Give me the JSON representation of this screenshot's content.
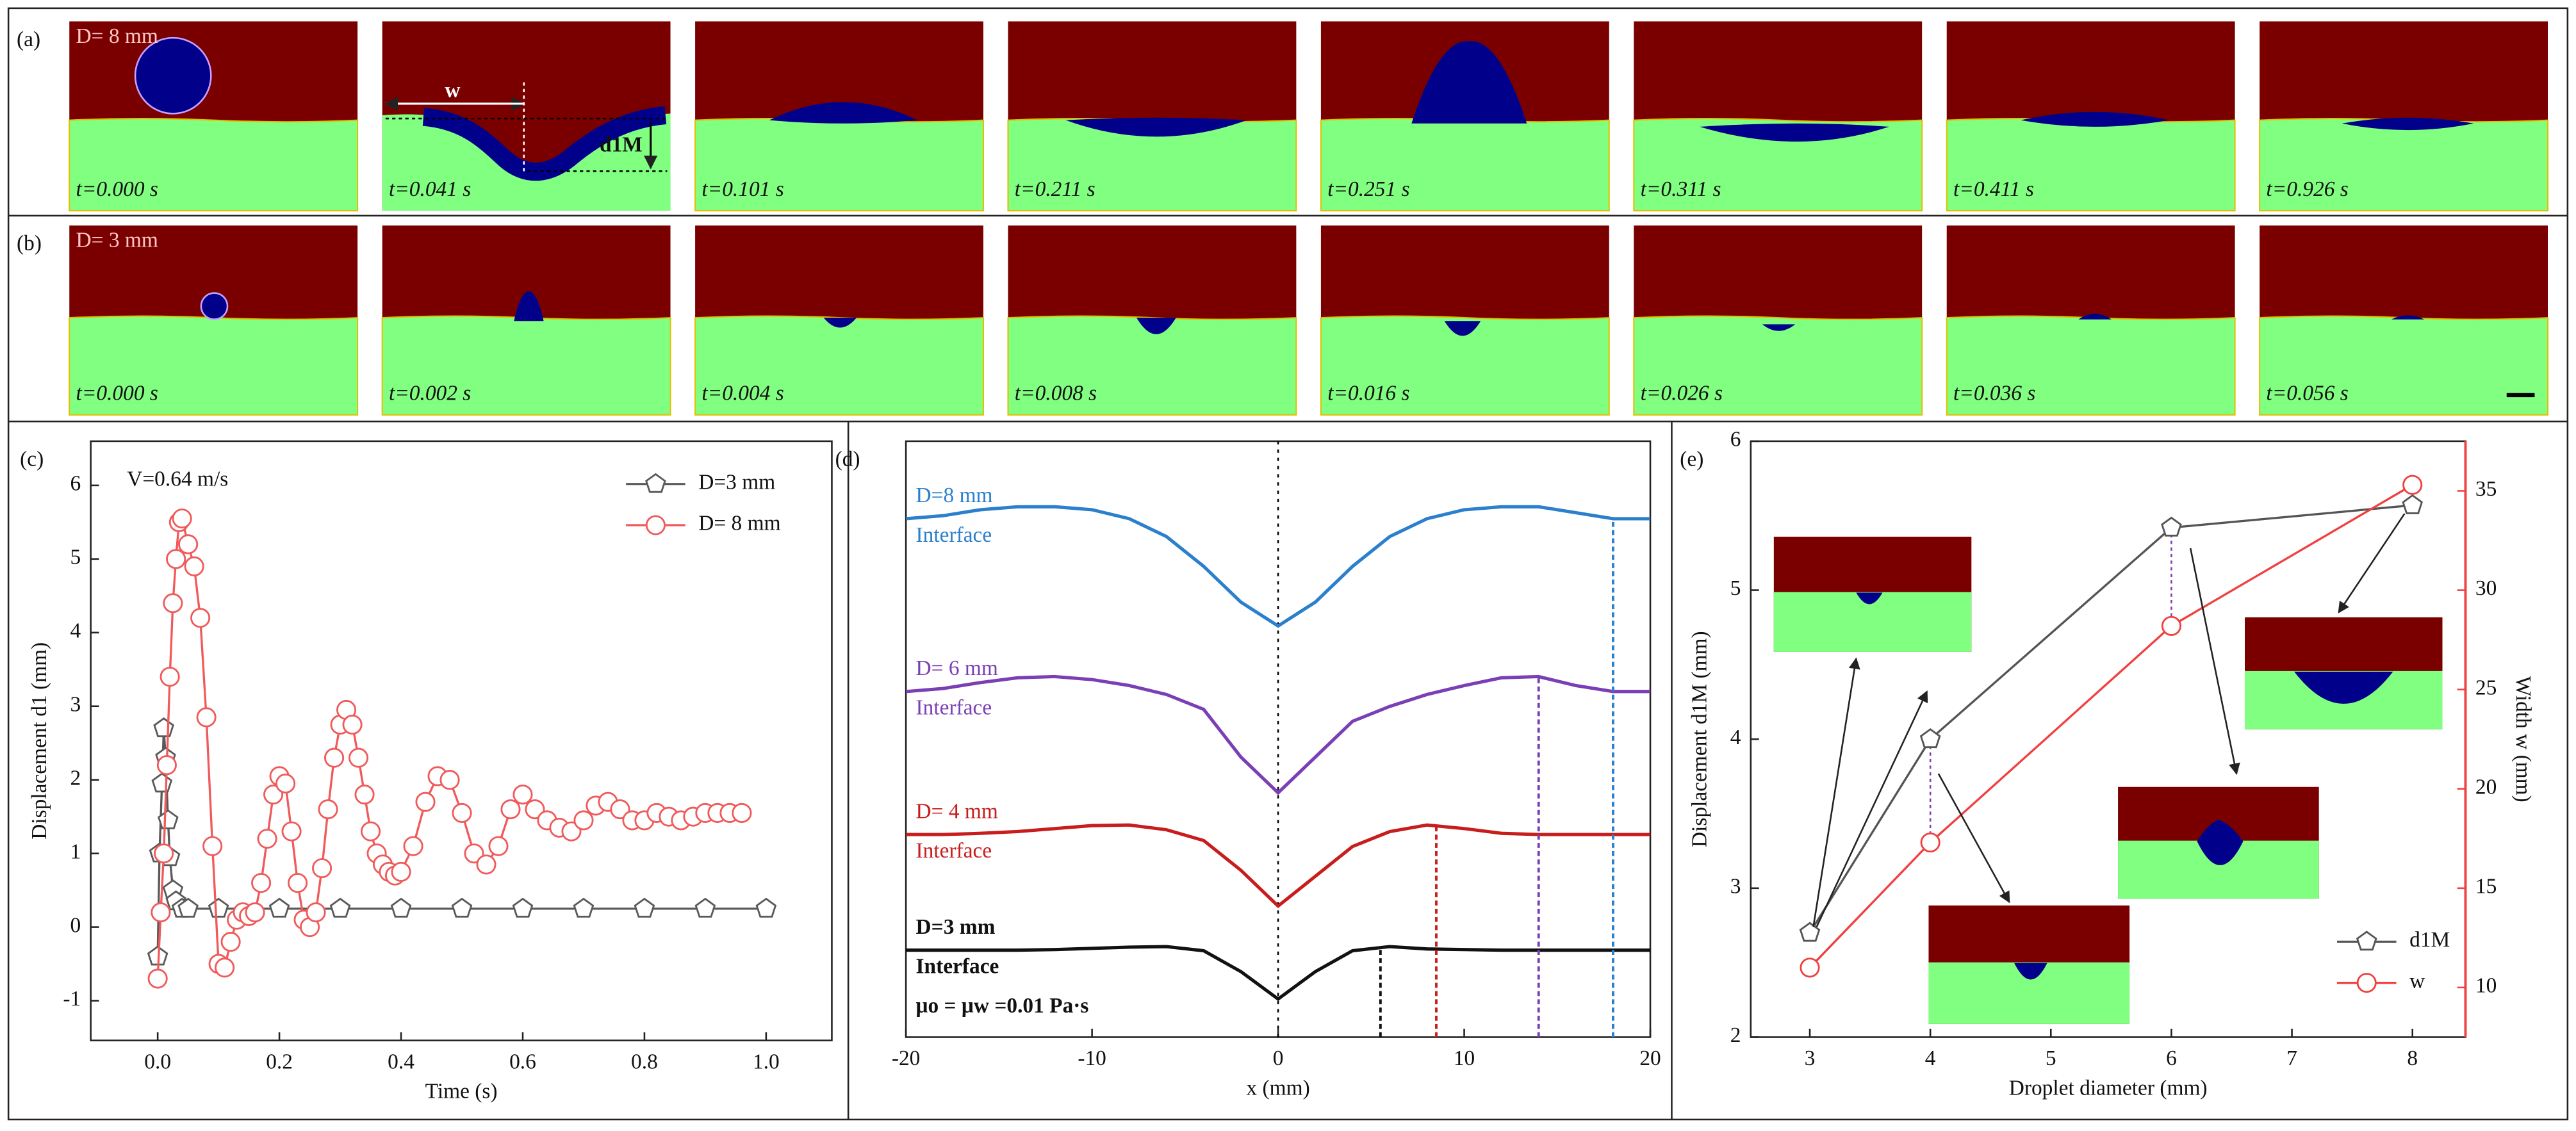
{
  "panels": [
    {
      "label": "(a)",
      "diameter": "D= 8 mm",
      "times": [
        "t=0.000 s",
        "t=0.041 s",
        "t=0.101 s",
        "t=0.211 s",
        "t=0.251 s",
        "t=0.311 s",
        "t=0.411 s",
        "t=0.926 s"
      ],
      "width_label": "w",
      "depth_label": "d1M"
    },
    {
      "label": "(b)",
      "diameter": "D= 3 mm",
      "times": [
        "t=0.000 s",
        "t=0.002 s",
        "t=0.004 s",
        "t=0.008 s",
        "t=0.016 s",
        "t=0.026 s",
        "t=0.036 s",
        "t=0.056 s"
      ]
    }
  ],
  "chart_data": [
    {
      "type": "line",
      "panel_label": "(c)",
      "annotation": "V=0.64 m/s",
      "x_label": "Time (s)",
      "y_label": "Displacement d1 (mm)",
      "xlim": [
        -0.11,
        1.108
      ],
      "ylim": [
        -1.54,
        6.6
      ],
      "xticks": [
        {
          "value": 0,
          "label": "0.0"
        },
        0.2,
        0.4,
        0.6,
        0.8,
        {
          "value": 1,
          "label": "1.0"
        }
      ],
      "yticks": [
        -1,
        0,
        1,
        2,
        3,
        4,
        5,
        6
      ],
      "legend": "upper right",
      "series": [
        {
          "name": "D=3 mm",
          "color": "#5a5a5a",
          "marker": "pentagon",
          "x": [
            0,
            0.003,
            0.007,
            0.01,
            0.013,
            0.017,
            0.02,
            0.025,
            0.03,
            0.04,
            0.05,
            0.1,
            0.2,
            0.3,
            0.4,
            0.5,
            0.6,
            0.7,
            0.8,
            0.9,
            1.0
          ],
          "values": [
            -0.4,
            1.0,
            1.95,
            2.7,
            2.3,
            1.45,
            0.95,
            0.5,
            0.35,
            0.25,
            0.25,
            0.25,
            0.25,
            0.25,
            0.25,
            0.25,
            0.25,
            0.25,
            0.25,
            0.25,
            0.25
          ]
        },
        {
          "name": "D= 8 mm",
          "color": "#f05a5a",
          "marker": "circle",
          "x": [
            0,
            0.005,
            0.01,
            0.015,
            0.02,
            0.025,
            0.03,
            0.035,
            0.04,
            0.05,
            0.06,
            0.07,
            0.08,
            0.09,
            0.1,
            0.11,
            0.12,
            0.13,
            0.14,
            0.15,
            0.16,
            0.17,
            0.18,
            0.19,
            0.2,
            0.21,
            0.22,
            0.23,
            0.24,
            0.25,
            0.26,
            0.27,
            0.28,
            0.29,
            0.3,
            0.31,
            0.32,
            0.33,
            0.34,
            0.35,
            0.36,
            0.37,
            0.38,
            0.39,
            0.4,
            0.42,
            0.44,
            0.46,
            0.48,
            0.5,
            0.52,
            0.54,
            0.56,
            0.58,
            0.6,
            0.62,
            0.64,
            0.66,
            0.68,
            0.7,
            0.72,
            0.74,
            0.76,
            0.78,
            0.8,
            0.82,
            0.84,
            0.86,
            0.88,
            0.9,
            0.92,
            0.94,
            0.96
          ],
          "values": [
            -0.7,
            0.2,
            1.0,
            2.2,
            3.4,
            4.4,
            5.0,
            5.5,
            5.55,
            5.2,
            4.9,
            4.2,
            2.85,
            1.1,
            -0.5,
            -0.55,
            -0.2,
            0.1,
            0.2,
            0.15,
            0.2,
            0.6,
            1.2,
            1.8,
            2.05,
            1.95,
            1.3,
            0.6,
            0.1,
            0.0,
            0.2,
            0.8,
            1.6,
            2.3,
            2.75,
            2.95,
            2.75,
            2.3,
            1.8,
            1.3,
            1.0,
            0.85,
            0.75,
            0.7,
            0.75,
            1.1,
            1.7,
            2.05,
            2.0,
            1.55,
            1.0,
            0.85,
            1.1,
            1.6,
            1.8,
            1.6,
            1.45,
            1.35,
            1.3,
            1.45,
            1.65,
            1.7,
            1.6,
            1.45,
            1.45,
            1.55,
            1.5,
            1.45,
            1.5,
            1.55,
            1.55,
            1.55,
            1.55
          ]
        }
      ]
    },
    {
      "type": "line",
      "panel_label": "(d)",
      "x_label": "x (mm)",
      "xlim": [
        -20,
        20
      ],
      "xticks": [
        -20,
        -10,
        0,
        10,
        20
      ],
      "ylim": [
        0,
        100
      ],
      "center_line": 0,
      "annotation": "μo = μw =0.01 Pa·s",
      "x": [
        -20,
        -18,
        -16,
        -14,
        -12,
        -10,
        -8,
        -6,
        -4,
        -2,
        0,
        2,
        4,
        6,
        8,
        10,
        12,
        14,
        16,
        18,
        20
      ],
      "series": [
        {
          "name": "D=8 mm",
          "sublabel": "Interface",
          "color": "#2b7fcc",
          "values": [
            87,
            87.5,
            88.5,
            89,
            89,
            88.5,
            87,
            84,
            79,
            73,
            69,
            73,
            79,
            84,
            87,
            88.5,
            89,
            89,
            88,
            87,
            87
          ]
        },
        {
          "name": "D= 6 mm",
          "sublabel": "Interface",
          "color": "#7b3fb5",
          "values": [
            58,
            58.5,
            59.5,
            60.3,
            60.5,
            60,
            59,
            57.5,
            55,
            47,
            41,
            47,
            53,
            55.5,
            57.5,
            59,
            60.3,
            60.5,
            59,
            58,
            58
          ]
        },
        {
          "name": "D= 4 mm",
          "sublabel": "Interface",
          "color": "#c81d1d",
          "values": [
            34,
            34,
            34.2,
            34.5,
            35,
            35.5,
            35.6,
            34.8,
            33,
            28,
            22,
            27,
            32,
            34.5,
            35.6,
            35,
            34.2,
            34,
            34,
            34,
            34
          ]
        },
        {
          "name": "D=3 mm",
          "sublabel": "Interface",
          "color": "#111111",
          "values": [
            14.6,
            14.6,
            14.6,
            14.6,
            14.7,
            14.9,
            15.1,
            15.2,
            14.5,
            11,
            6.4,
            11,
            14.5,
            15.2,
            14.8,
            14.7,
            14.6,
            14.6,
            14.6,
            14.6,
            14.6
          ]
        }
      ],
      "markers": [
        18,
        14,
        8.5,
        5.5
      ]
    },
    {
      "type": "line",
      "panel_label": "(e)",
      "x_label": "Droplet diameter (mm)",
      "y_label": "Displacement d1M (mm)",
      "y2_label": "Width w (mm)",
      "xlim": [
        2.51,
        8.44
      ],
      "xticks": [
        3,
        4,
        5,
        6,
        7,
        8
      ],
      "ylim": [
        2,
        6
      ],
      "yticks": [
        2,
        3,
        4,
        5,
        6
      ],
      "y2lim": [
        7.5,
        37.5
      ],
      "y2ticks": [
        10,
        15,
        20,
        25,
        30,
        35
      ],
      "legend": "lower right",
      "x": [
        3,
        4,
        6,
        8
      ],
      "series": [
        {
          "name": "d1M",
          "color": "#555555",
          "marker": "pentagon",
          "values": [
            2.7,
            4.0,
            5.42,
            5.57
          ]
        },
        {
          "name": "w",
          "color": "#f04040",
          "marker": "circle",
          "axis": "y2",
          "values": [
            11.0,
            17.3,
            28.2,
            35.3
          ]
        }
      ]
    }
  ]
}
